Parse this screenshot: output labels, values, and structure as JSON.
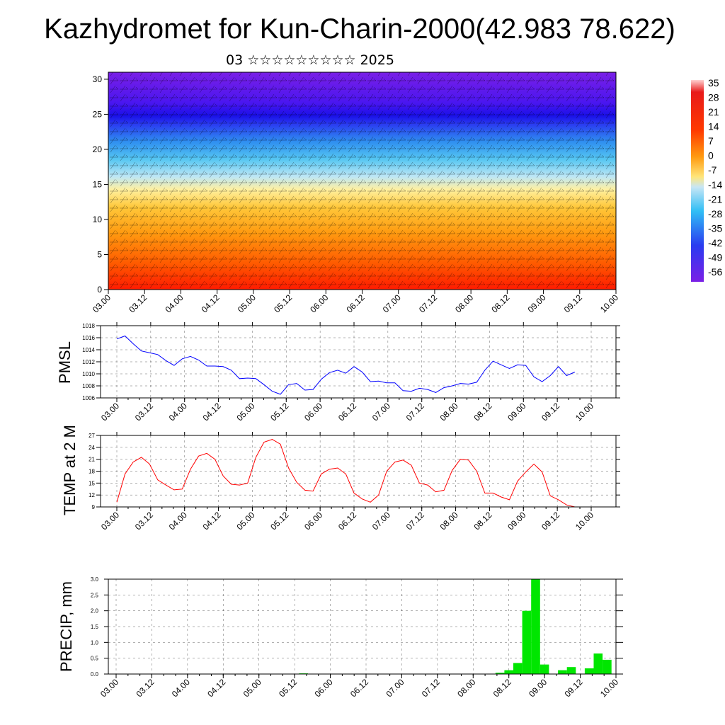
{
  "page": {
    "title": "Kazhydromet for Kun-Charin-2000(42.983 78.622)",
    "subtitle": "03 ☆☆☆☆☆☆☆☆☆ 2025"
  },
  "chart_data": [
    {
      "type": "heatmap",
      "name": "cross-section",
      "x_ticks": [
        "03.00",
        "03.12",
        "04.00",
        "04.12",
        "05.00",
        "05.12",
        "06.00",
        "06.12",
        "07.00",
        "07.12",
        "08.00",
        "08.12",
        "09.00",
        "09.12",
        "10.00"
      ],
      "y_ticks": [
        "0",
        "5",
        "10",
        "15",
        "20",
        "25",
        "30"
      ],
      "ylim": [
        0,
        31
      ],
      "colorbar_labels": [
        "35",
        "28",
        "21",
        "14",
        "7",
        "0",
        "-7",
        "-14",
        "-21",
        "-28",
        "-35",
        "-42",
        "-49",
        "-56"
      ],
      "colorbar_visible_labels": [
        "3 ",
        "2 ",
        "2 ",
        "1 ",
        "7",
        "0",
        "-7",
        "-1",
        "-2",
        "-2",
        "-3",
        "-4",
        "-4",
        "-5"
      ]
    },
    {
      "type": "line",
      "name": "pmsl",
      "ylabel": "PMSL",
      "ylim": [
        1006,
        1018
      ],
      "y_ticks": [
        "1006",
        "1008",
        "1010",
        "1012",
        "1014",
        "1016",
        "1018"
      ],
      "x_ticks": [
        "03.00",
        "03.12",
        "04.00",
        "04.12",
        "05.00",
        "05.12",
        "06.00",
        "06.12",
        "07.00",
        "07.12",
        "08.00",
        "08.12",
        "09.00",
        "09.12",
        "10.00"
      ],
      "color": "#0000ff",
      "values": [
        1015.8,
        1016.3,
        1015,
        1013.8,
        1013.5,
        1013.2,
        1012.2,
        1011.4,
        1012.5,
        1012.9,
        1012.3,
        1011.3,
        1011.3,
        1011.2,
        1010.6,
        1009.2,
        1009.3,
        1009.2,
        1008.2,
        1007.1,
        1006.6,
        1008.2,
        1008.4,
        1007.3,
        1007.4,
        1009.1,
        1010.2,
        1010.6,
        1010.1,
        1011.2,
        1010.3,
        1008.7,
        1008.8,
        1008.5,
        1008.5,
        1007.2,
        1007.1,
        1007.6,
        1007.4,
        1006.9,
        1007.7,
        1008,
        1008.4,
        1008.3,
        1008.6,
        1010.6,
        1012.1,
        1011.5,
        1010.9,
        1011.5,
        1011.4,
        1009.5,
        1008.7,
        1009.7,
        1011.2,
        1009.7,
        1010.3
      ]
    },
    {
      "type": "line",
      "name": "temp2m",
      "ylabel": "TEMP at 2 M",
      "ylim": [
        9,
        27
      ],
      "y_ticks": [
        "9",
        "12",
        "15",
        "18",
        "21",
        "24",
        "27"
      ],
      "x_ticks": [
        "03.00",
        "03.12",
        "04.00",
        "04.12",
        "05.00",
        "05.12",
        "06.00",
        "06.12",
        "07.00",
        "07.12",
        "08.00",
        "08.12",
        "09.00",
        "09.12",
        "10.00"
      ],
      "color": "#ff0000",
      "values": [
        10.2,
        17.3,
        20.3,
        21.5,
        19.8,
        15.8,
        14.5,
        13.3,
        13.5,
        18.5,
        21.8,
        22.5,
        21,
        16.8,
        14.7,
        14.5,
        15,
        21.5,
        25.3,
        26,
        24.8,
        18.8,
        15.2,
        13.2,
        13,
        17.3,
        18.5,
        18.8,
        17.3,
        12.5,
        11,
        10.2,
        12,
        18,
        20.3,
        20.8,
        19.5,
        15,
        14.5,
        12.8,
        13.2,
        18.2,
        21,
        20.8,
        18,
        12.5,
        12.5,
        11.5,
        10.8,
        15.5,
        17.8,
        19.8,
        17.8,
        11.8,
        10.8,
        9.5,
        9
      ]
    },
    {
      "type": "bar",
      "name": "precip",
      "ylabel": "PRECIP, mm",
      "ylim": [
        0,
        3
      ],
      "y_ticks": [
        "0.0",
        "0.5",
        "1.0",
        "1.5",
        "2.0",
        "2.5",
        "3.0"
      ],
      "x_ticks": [
        "03.00",
        "03.12",
        "04.00",
        "04.12",
        "05.00",
        "05.12",
        "06.00",
        "06.12",
        "07.00",
        "07.12",
        "08.00",
        "08.12",
        "09.00",
        "09.12",
        "10.00"
      ],
      "color": "#00e600",
      "values": [
        0,
        0,
        0,
        0,
        0,
        0,
        0,
        0,
        0,
        0,
        0,
        0,
        0,
        0,
        0,
        0,
        0,
        0,
        0,
        0,
        0,
        0.02,
        0,
        0,
        0,
        0,
        0,
        0,
        0,
        0,
        0,
        0,
        0,
        0,
        0,
        0,
        0,
        0,
        0,
        0,
        0,
        0,
        0,
        0.04,
        0.12,
        0.35,
        2,
        3,
        0.3,
        0,
        0.12,
        0.22,
        0,
        0.18,
        0.65,
        0.45,
        0
      ]
    }
  ]
}
